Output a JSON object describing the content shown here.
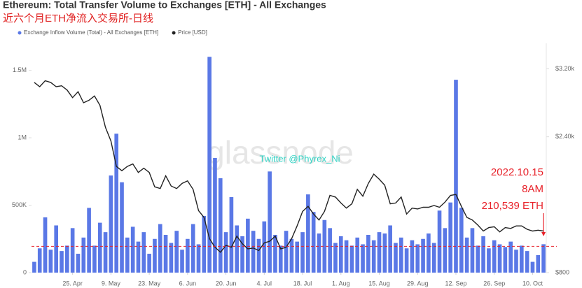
{
  "chart_data": {
    "type": "bar_line",
    "title": "Ethereum: Total Transfer Volume to Exchanges [ETH] - All Exchanges",
    "subtitle": "近六个月ETH净流入交易所-日线",
    "watermark": "glassnode",
    "credit": "Twitter @Phyrex_Ni",
    "categories": [
      null,
      null,
      null,
      null,
      null,
      null,
      null,
      "25. Apr",
      null,
      null,
      null,
      null,
      null,
      null,
      "9. May",
      null,
      null,
      null,
      null,
      null,
      null,
      "23. May",
      null,
      null,
      null,
      null,
      null,
      null,
      "6. Jun",
      null,
      null,
      null,
      null,
      null,
      null,
      "20. Jun",
      null,
      null,
      null,
      null,
      null,
      null,
      "4. Jul",
      null,
      null,
      null,
      null,
      null,
      null,
      "18. Jul",
      null,
      null,
      null,
      null,
      null,
      null,
      "1. Aug",
      null,
      null,
      null,
      null,
      null,
      null,
      "15. Aug",
      null,
      null,
      null,
      null,
      null,
      null,
      "29. Aug",
      null,
      null,
      null,
      null,
      null,
      null,
      "12. Sep",
      null,
      null,
      null,
      null,
      null,
      null,
      "26. Sep",
      null,
      null,
      null,
      null,
      null,
      null,
      "10. Oct",
      null,
      null
    ],
    "series": [
      {
        "name": "Exchange Inflow Volume (Total) - All Exchanges [ETH]",
        "type": "bar",
        "color": "#5a78e6",
        "values": [
          80000,
          180000,
          410000,
          170000,
          350000,
          160000,
          200000,
          330000,
          140000,
          260000,
          480000,
          200000,
          370000,
          300000,
          720000,
          1030000,
          670000,
          260000,
          340000,
          230000,
          300000,
          140000,
          250000,
          360000,
          280000,
          220000,
          310000,
          170000,
          250000,
          360000,
          210000,
          420000,
          1600000,
          850000,
          700000,
          300000,
          560000,
          350000,
          270000,
          400000,
          310000,
          250000,
          380000,
          750000,
          280000,
          200000,
          310000,
          250000,
          230000,
          300000,
          580000,
          450000,
          290000,
          390000,
          330000,
          220000,
          270000,
          240000,
          200000,
          260000,
          210000,
          280000,
          240000,
          300000,
          290000,
          350000,
          220000,
          260000,
          180000,
          240000,
          210000,
          250000,
          290000,
          220000,
          460000,
          330000,
          520000,
          1430000,
          480000,
          260000,
          330000,
          200000,
          270000,
          180000,
          240000,
          210000,
          190000,
          230000,
          170000,
          200000,
          160000,
          80000,
          130000,
          210539
        ]
      },
      {
        "name": "Price [USD]",
        "type": "line",
        "axis": "y2",
        "color": "#222222",
        "values": [
          3040,
          2990,
          3060,
          3040,
          2990,
          3000,
          2950,
          2860,
          2930,
          2800,
          2830,
          2880,
          2770,
          2510,
          2350,
          2050,
          2000,
          2050,
          2080,
          1980,
          2030,
          1980,
          1810,
          1790,
          1940,
          1820,
          1790,
          1850,
          1880,
          1780,
          1530,
          1450,
          1200,
          1100,
          1040,
          1120,
          1100,
          1230,
          1140,
          1080,
          1090,
          1060,
          1150,
          1170,
          1230,
          1080,
          1100,
          1200,
          1350,
          1520,
          1580,
          1490,
          1420,
          1520,
          1710,
          1690,
          1620,
          1560,
          1610,
          1780,
          1700,
          1850,
          1960,
          1900,
          1830,
          1610,
          1620,
          1690,
          1490,
          1560,
          1550,
          1570,
          1570,
          1590,
          1570,
          1630,
          1710,
          1720,
          1580,
          1450,
          1420,
          1360,
          1290,
          1330,
          1340,
          1280,
          1330,
          1320,
          1350,
          1350,
          1310,
          1290,
          1300,
          1290
        ]
      }
    ],
    "ylim": [
      0,
      1700000
    ],
    "yticks": [
      0,
      {
        "value": 500000,
        "label": "500K"
      },
      {
        "value": 1000000,
        "label": "1M"
      },
      {
        "value": 1500000,
        "label": "1.5M"
      }
    ],
    "y2lim": [
      800,
      3500
    ],
    "y2ticks": [
      {
        "value": 800,
        "label": "$800"
      },
      {
        "value": 2400,
        "label": "$2.40k"
      },
      {
        "value": 3200,
        "label": "$3.20k"
      }
    ],
    "grid": false,
    "reference_line": {
      "value": 195000,
      "color": "#e8222a"
    },
    "annotation": [
      "2022.10.15",
      "8AM",
      "210,539 ETH"
    ]
  }
}
